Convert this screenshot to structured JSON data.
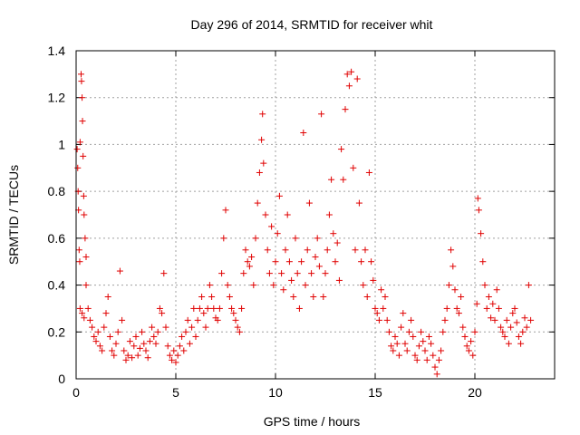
{
  "chart_data": {
    "type": "scatter",
    "title": "Day 296 of 2014, SRMTID for receiver whit",
    "xlabel": "GPS time / hours",
    "ylabel": "SRMTID / TECUs",
    "xlim": [
      0,
      24
    ],
    "ylim": [
      0,
      1.4
    ],
    "xticks": [
      0,
      5,
      10,
      15,
      20
    ],
    "yticks": [
      0,
      0.2,
      0.4,
      0.6,
      0.8,
      1,
      1.2,
      1.4
    ],
    "xtick_labels": [
      "0",
      "5",
      "10",
      "15",
      "20"
    ],
    "ytick_labels": [
      "0",
      "0.2",
      "0.4",
      "0.6",
      "0.8",
      "1",
      "1.2",
      "1.4"
    ],
    "grid": true,
    "marker": "+",
    "color": "#e00000",
    "series": [
      {
        "name": "SRMTID",
        "points": [
          [
            0.05,
            0.98
          ],
          [
            0.08,
            0.9
          ],
          [
            0.1,
            0.8
          ],
          [
            0.12,
            0.72
          ],
          [
            0.15,
            0.55
          ],
          [
            0.18,
            0.5
          ],
          [
            0.2,
            1.01
          ],
          [
            0.25,
            1.3
          ],
          [
            0.27,
            1.27
          ],
          [
            0.3,
            1.2
          ],
          [
            0.32,
            1.1
          ],
          [
            0.35,
            0.95
          ],
          [
            0.38,
            0.78
          ],
          [
            0.4,
            0.7
          ],
          [
            0.45,
            0.6
          ],
          [
            0.5,
            0.52
          ],
          [
            0.2,
            0.3
          ],
          [
            0.3,
            0.28
          ],
          [
            0.4,
            0.26
          ],
          [
            0.5,
            0.4
          ],
          [
            0.6,
            0.3
          ],
          [
            0.7,
            0.25
          ],
          [
            0.8,
            0.22
          ],
          [
            0.9,
            0.18
          ],
          [
            1.0,
            0.16
          ],
          [
            1.1,
            0.2
          ],
          [
            1.2,
            0.14
          ],
          [
            1.3,
            0.12
          ],
          [
            1.4,
            0.22
          ],
          [
            1.5,
            0.28
          ],
          [
            1.6,
            0.35
          ],
          [
            1.7,
            0.18
          ],
          [
            1.8,
            0.12
          ],
          [
            1.9,
            0.1
          ],
          [
            2.0,
            0.15
          ],
          [
            2.1,
            0.2
          ],
          [
            2.2,
            0.46
          ],
          [
            2.3,
            0.25
          ],
          [
            2.4,
            0.12
          ],
          [
            2.5,
            0.08
          ],
          [
            2.6,
            0.1
          ],
          [
            2.7,
            0.16
          ],
          [
            2.8,
            0.09
          ],
          [
            2.9,
            0.14
          ],
          [
            3.0,
            0.18
          ],
          [
            3.1,
            0.1
          ],
          [
            3.2,
            0.13
          ],
          [
            3.3,
            0.2
          ],
          [
            3.4,
            0.15
          ],
          [
            3.5,
            0.12
          ],
          [
            3.6,
            0.09
          ],
          [
            3.7,
            0.16
          ],
          [
            3.8,
            0.22
          ],
          [
            3.9,
            0.18
          ],
          [
            4.0,
            0.15
          ],
          [
            4.1,
            0.2
          ],
          [
            4.2,
            0.3
          ],
          [
            4.3,
            0.28
          ],
          [
            4.4,
            0.45
          ],
          [
            4.5,
            0.22
          ],
          [
            4.6,
            0.14
          ],
          [
            4.7,
            0.1
          ],
          [
            4.8,
            0.08
          ],
          [
            4.9,
            0.12
          ],
          [
            5.0,
            0.07
          ],
          [
            5.1,
            0.1
          ],
          [
            5.2,
            0.14
          ],
          [
            5.3,
            0.18
          ],
          [
            5.4,
            0.12
          ],
          [
            5.5,
            0.2
          ],
          [
            5.6,
            0.25
          ],
          [
            5.7,
            0.15
          ],
          [
            5.8,
            0.22
          ],
          [
            5.9,
            0.3
          ],
          [
            6.0,
            0.18
          ],
          [
            6.1,
            0.25
          ],
          [
            6.2,
            0.3
          ],
          [
            6.3,
            0.35
          ],
          [
            6.4,
            0.28
          ],
          [
            6.5,
            0.22
          ],
          [
            6.6,
            0.3
          ],
          [
            6.7,
            0.4
          ],
          [
            6.8,
            0.35
          ],
          [
            6.9,
            0.3
          ],
          [
            7.0,
            0.26
          ],
          [
            7.1,
            0.25
          ],
          [
            7.2,
            0.3
          ],
          [
            7.3,
            0.45
          ],
          [
            7.4,
            0.6
          ],
          [
            7.5,
            0.72
          ],
          [
            7.6,
            0.4
          ],
          [
            7.7,
            0.35
          ],
          [
            7.8,
            0.3
          ],
          [
            7.9,
            0.28
          ],
          [
            8.0,
            0.25
          ],
          [
            8.1,
            0.22
          ],
          [
            8.2,
            0.2
          ],
          [
            8.3,
            0.3
          ],
          [
            8.4,
            0.45
          ],
          [
            8.5,
            0.55
          ],
          [
            8.6,
            0.5
          ],
          [
            8.7,
            0.48
          ],
          [
            8.8,
            0.52
          ],
          [
            8.9,
            0.4
          ],
          [
            9.0,
            0.6
          ],
          [
            9.1,
            0.75
          ],
          [
            9.2,
            0.88
          ],
          [
            9.3,
            1.02
          ],
          [
            9.35,
            1.13
          ],
          [
            9.4,
            0.92
          ],
          [
            9.5,
            0.7
          ],
          [
            9.6,
            0.55
          ],
          [
            9.7,
            0.45
          ],
          [
            9.8,
            0.65
          ],
          [
            9.9,
            0.4
          ],
          [
            10.0,
            0.5
          ],
          [
            10.1,
            0.62
          ],
          [
            10.2,
            0.78
          ],
          [
            10.3,
            0.45
          ],
          [
            10.4,
            0.38
          ],
          [
            10.5,
            0.55
          ],
          [
            10.6,
            0.7
          ],
          [
            10.7,
            0.5
          ],
          [
            10.8,
            0.42
          ],
          [
            10.9,
            0.35
          ],
          [
            11.0,
            0.6
          ],
          [
            11.1,
            0.45
          ],
          [
            11.2,
            0.3
          ],
          [
            11.3,
            0.5
          ],
          [
            11.4,
            1.05
          ],
          [
            11.5,
            0.4
          ],
          [
            11.6,
            0.55
          ],
          [
            11.7,
            0.75
          ],
          [
            11.8,
            0.45
          ],
          [
            11.9,
            0.35
          ],
          [
            12.0,
            0.52
          ],
          [
            12.1,
            0.6
          ],
          [
            12.2,
            0.48
          ],
          [
            12.3,
            1.13
          ],
          [
            12.4,
            0.35
          ],
          [
            12.5,
            0.45
          ],
          [
            12.6,
            0.55
          ],
          [
            12.7,
            0.7
          ],
          [
            12.8,
            0.85
          ],
          [
            12.9,
            0.62
          ],
          [
            13.0,
            0.5
          ],
          [
            13.1,
            0.58
          ],
          [
            13.2,
            0.42
          ],
          [
            13.3,
            0.98
          ],
          [
            13.4,
            0.85
          ],
          [
            13.5,
            1.15
          ],
          [
            13.6,
            1.3
          ],
          [
            13.7,
            1.25
          ],
          [
            13.8,
            1.31
          ],
          [
            13.9,
            0.9
          ],
          [
            14.0,
            0.55
          ],
          [
            14.1,
            1.28
          ],
          [
            14.2,
            0.75
          ],
          [
            14.3,
            0.5
          ],
          [
            14.4,
            0.4
          ],
          [
            14.5,
            0.55
          ],
          [
            14.6,
            0.35
          ],
          [
            14.7,
            0.88
          ],
          [
            14.8,
            0.5
          ],
          [
            14.9,
            0.42
          ],
          [
            15.0,
            0.3
          ],
          [
            15.1,
            0.28
          ],
          [
            15.2,
            0.25
          ],
          [
            15.3,
            0.38
          ],
          [
            15.4,
            0.3
          ],
          [
            15.5,
            0.35
          ],
          [
            15.6,
            0.25
          ],
          [
            15.7,
            0.2
          ],
          [
            15.8,
            0.14
          ],
          [
            15.9,
            0.12
          ],
          [
            16.0,
            0.18
          ],
          [
            16.1,
            0.15
          ],
          [
            16.2,
            0.1
          ],
          [
            16.3,
            0.22
          ],
          [
            16.4,
            0.28
          ],
          [
            16.5,
            0.15
          ],
          [
            16.6,
            0.12
          ],
          [
            16.7,
            0.2
          ],
          [
            16.8,
            0.25
          ],
          [
            16.9,
            0.18
          ],
          [
            17.0,
            0.1
          ],
          [
            17.1,
            0.08
          ],
          [
            17.2,
            0.14
          ],
          [
            17.3,
            0.2
          ],
          [
            17.4,
            0.16
          ],
          [
            17.5,
            0.12
          ],
          [
            17.6,
            0.08
          ],
          [
            17.7,
            0.18
          ],
          [
            17.8,
            0.15
          ],
          [
            17.9,
            0.1
          ],
          [
            18.0,
            0.05
          ],
          [
            18.1,
            0.02
          ],
          [
            18.2,
            0.08
          ],
          [
            18.3,
            0.12
          ],
          [
            18.4,
            0.2
          ],
          [
            18.5,
            0.25
          ],
          [
            18.6,
            0.3
          ],
          [
            18.7,
            0.4
          ],
          [
            18.8,
            0.55
          ],
          [
            18.9,
            0.48
          ],
          [
            19.0,
            0.38
          ],
          [
            19.1,
            0.3
          ],
          [
            19.2,
            0.28
          ],
          [
            19.3,
            0.35
          ],
          [
            19.4,
            0.22
          ],
          [
            19.5,
            0.18
          ],
          [
            19.6,
            0.14
          ],
          [
            19.7,
            0.12
          ],
          [
            19.8,
            0.16
          ],
          [
            19.9,
            0.1
          ],
          [
            20.0,
            0.2
          ],
          [
            20.1,
            0.32
          ],
          [
            20.15,
            0.77
          ],
          [
            20.2,
            0.72
          ],
          [
            20.3,
            0.62
          ],
          [
            20.4,
            0.5
          ],
          [
            20.5,
            0.4
          ],
          [
            20.6,
            0.3
          ],
          [
            20.7,
            0.35
          ],
          [
            20.8,
            0.26
          ],
          [
            20.9,
            0.32
          ],
          [
            21.0,
            0.25
          ],
          [
            21.1,
            0.38
          ],
          [
            21.2,
            0.3
          ],
          [
            21.3,
            0.22
          ],
          [
            21.4,
            0.2
          ],
          [
            21.5,
            0.18
          ],
          [
            21.6,
            0.25
          ],
          [
            21.7,
            0.15
          ],
          [
            21.8,
            0.22
          ],
          [
            21.9,
            0.28
          ],
          [
            22.0,
            0.3
          ],
          [
            22.1,
            0.24
          ],
          [
            22.2,
            0.18
          ],
          [
            22.3,
            0.15
          ],
          [
            22.4,
            0.2
          ],
          [
            22.5,
            0.26
          ],
          [
            22.6,
            0.22
          ],
          [
            22.7,
            0.4
          ],
          [
            22.8,
            0.25
          ]
        ]
      }
    ]
  }
}
